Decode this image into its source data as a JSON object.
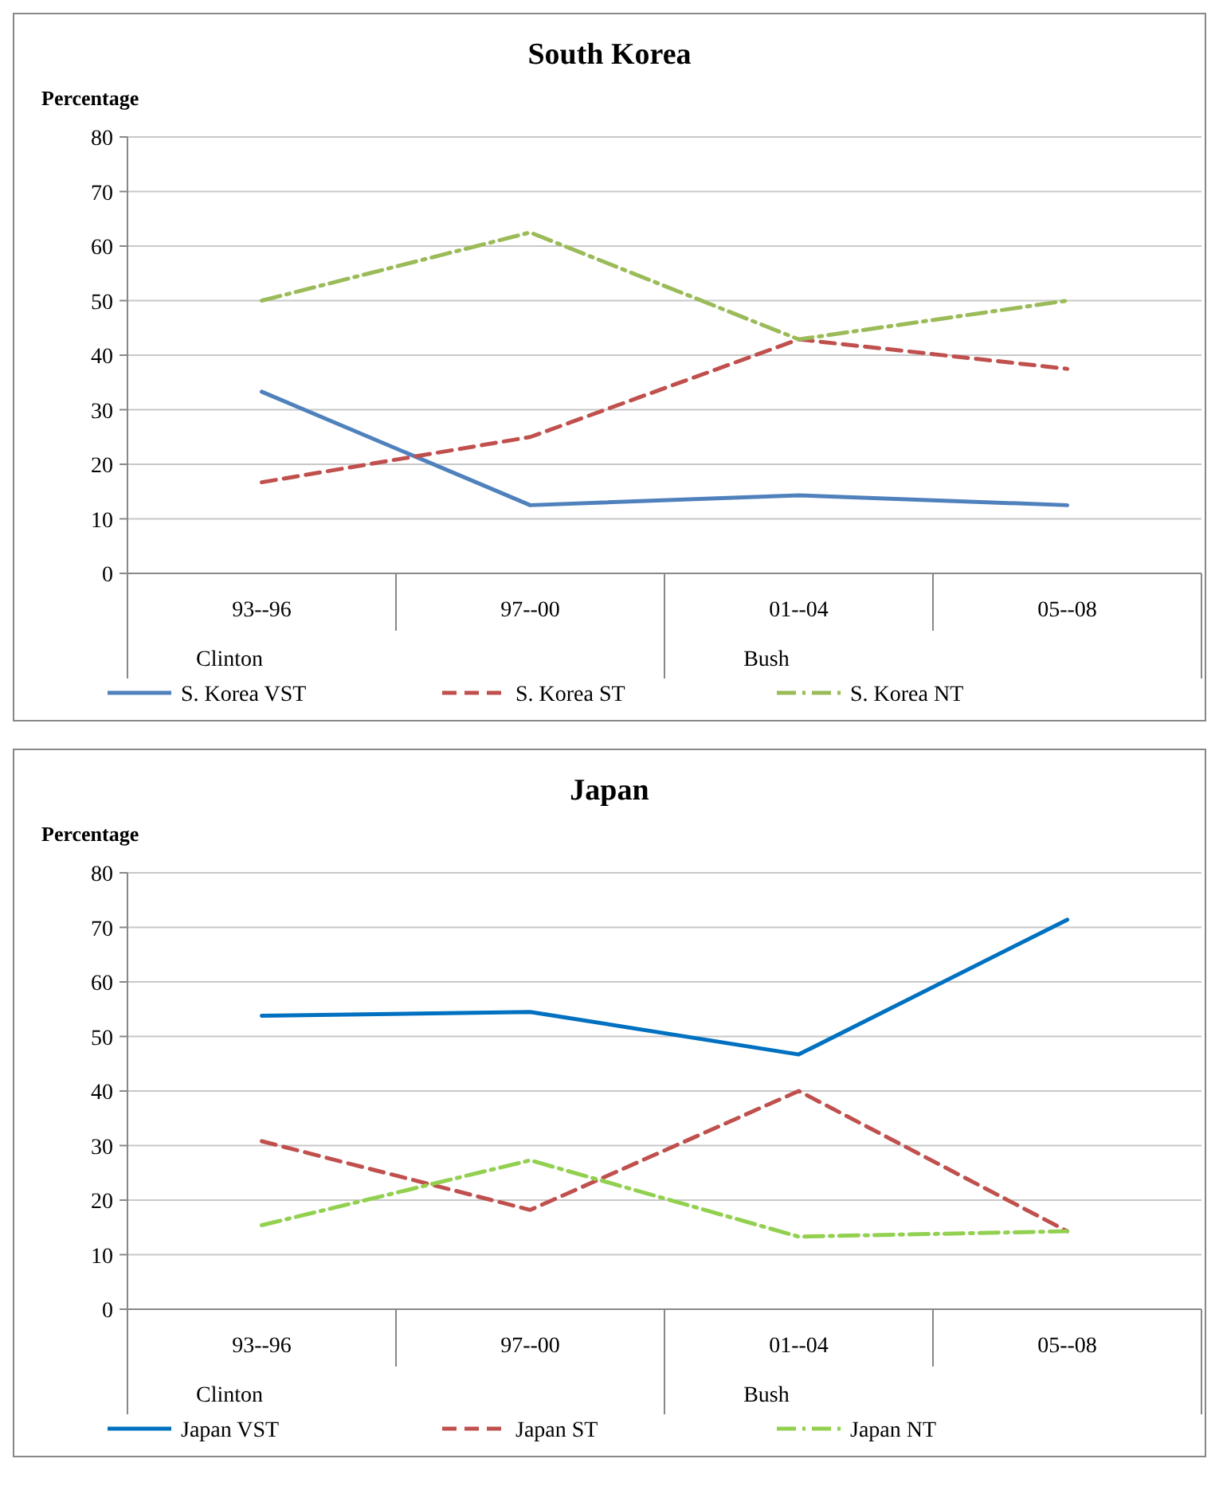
{
  "chart_data": [
    {
      "type": "line",
      "title": "South Korea",
      "ylabel": "Percentage",
      "categories": [
        "93--96",
        "97--00",
        "01--04",
        "05--08"
      ],
      "annotations": [
        "Clinton",
        "Bush"
      ],
      "ylim": [
        0,
        80
      ],
      "yticks": [
        0,
        10,
        20,
        30,
        40,
        50,
        60,
        70,
        80
      ],
      "grid": "y",
      "legend": "bottom",
      "marker": "none",
      "series": [
        {
          "name": "S. Korea VST",
          "color": "#4f81bd",
          "line_style": "solid",
          "values": [
            33.3,
            12.5,
            14.3,
            12.5
          ]
        },
        {
          "name": "S. Korea ST",
          "color": "#c0504d",
          "line_style": "dashed",
          "values": [
            16.7,
            25,
            42.9,
            37.5
          ]
        },
        {
          "name": "S. Korea NT",
          "color": "#9bbb59",
          "line_style": "dotted",
          "values": [
            50,
            62.5,
            42.9,
            50
          ]
        }
      ]
    },
    {
      "type": "line",
      "title": "Japan",
      "ylabel": "Percentage",
      "categories": [
        "93--96",
        "97--00",
        "01--04",
        "05--08"
      ],
      "annotations": [
        "Clinton",
        "Bush"
      ],
      "ylim": [
        0,
        80
      ],
      "yticks": [
        0,
        10,
        20,
        30,
        40,
        50,
        60,
        70,
        80
      ],
      "grid": "y",
      "legend": "bottom",
      "marker": "none",
      "series": [
        {
          "name": "Japan VST",
          "color": "#0070c0",
          "line_style": "solid",
          "values": [
            53.8,
            54.5,
            46.7,
            71.4
          ]
        },
        {
          "name": "Japan ST",
          "color": "#c0504d",
          "line_style": "dashed",
          "values": [
            30.8,
            18.2,
            40,
            14.3
          ]
        },
        {
          "name": "Japan NT",
          "color": "#92d050",
          "line_style": "dotted",
          "values": [
            15.4,
            27.3,
            13.3,
            14.3
          ]
        }
      ]
    }
  ]
}
